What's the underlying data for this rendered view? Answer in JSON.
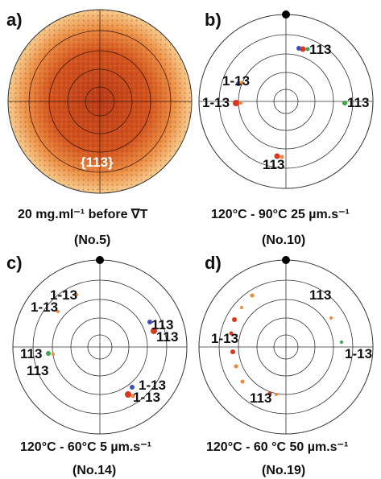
{
  "panels": [
    {
      "key": "a",
      "letter": "a)",
      "caption": "20 mg.ml⁻¹ before ∇T",
      "sample": "(No.5)",
      "inner_label": "{113}",
      "filled": true,
      "marker": false,
      "spots": []
    },
    {
      "key": "b",
      "letter": "b)",
      "caption": "120°C - 90°C 25 µm.s⁻¹",
      "sample": "(No.10)",
      "filled": false,
      "marker": true,
      "labels": [
        "113",
        "1-13",
        "1-13",
        "113",
        "113"
      ],
      "spots": []
    },
    {
      "key": "c",
      "letter": "c)",
      "caption": "120°C - 60°C 5 µm.s⁻¹",
      "sample": "(No.14)",
      "filled": false,
      "marker": true,
      "labels": [
        "1-13",
        "1-13",
        "113",
        "113",
        "113",
        "113",
        "1-13",
        "1-13"
      ],
      "spots": []
    },
    {
      "key": "d",
      "letter": "d)",
      "caption": "120°C - 60 °C 50 µm.s⁻¹",
      "sample": "(No.19)",
      "filled": false,
      "marker": true,
      "labels": [
        "113",
        "1-13",
        "1-13",
        "113"
      ],
      "spots": []
    }
  ],
  "colors": {
    "ring": "#222222",
    "fill_outer": "#f4c27c",
    "fill_mid": "#e2702e",
    "fill_inner": "#c0441c",
    "spot_red": "#d9381e",
    "spot_orange": "#ef8a3a",
    "spot_green": "#36a84a",
    "spot_blue": "#3a4fc0"
  }
}
